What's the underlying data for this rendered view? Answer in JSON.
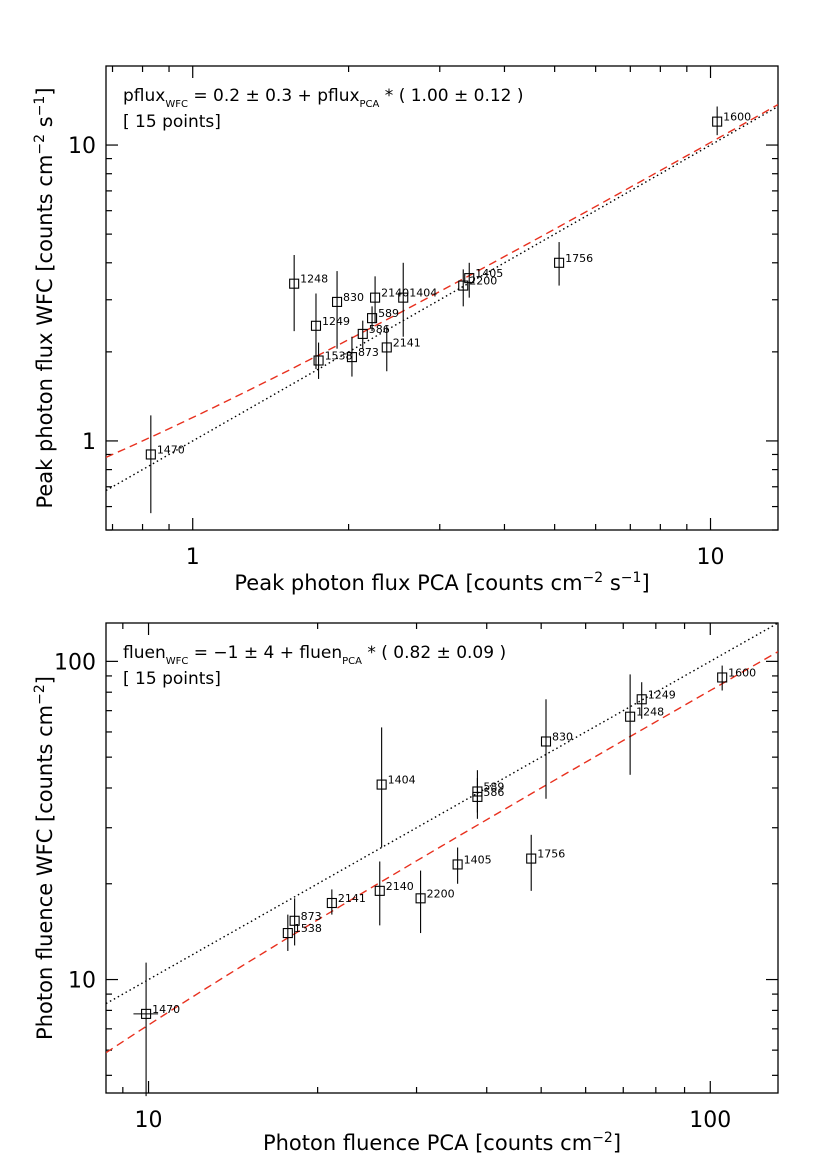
{
  "colors": {
    "fit_dashed": "#e8301e",
    "fit_dotted": "#000000",
    "axes": "#000000"
  },
  "chart_data": [
    {
      "type": "scatter",
      "xscale": "log",
      "yscale": "log",
      "xlim": [
        0.68,
        13.5
      ],
      "ylim": [
        0.5,
        18.5
      ],
      "xlabel": "Peak photon flux PCA [counts cm",
      "xlabel_unit_exp1": "−2",
      "xlabel_unit_mid": " s",
      "xlabel_unit_exp2": "−1",
      "xlabel_close": "]",
      "ylabel": "Peak photon flux WFC [counts cm",
      "ylabel_unit_exp1": "−2",
      "ylabel_unit_mid": " s",
      "ylabel_unit_exp2": "−1",
      "ylabel_close": "]",
      "xticks": [
        1,
        10
      ],
      "xtick_labels": [
        "1",
        "10"
      ],
      "yticks": [
        1,
        10
      ],
      "ytick_labels": [
        "1",
        "10"
      ],
      "annotation": {
        "line1_a": "pflux",
        "line1_sub1": "WFC",
        "line1_b": " = 0.2 ± 0.3 + pflux",
        "line1_sub2": "PCA",
        "line1_c": " * ( 1.00 ± 0.12 )",
        "line2": "[ 15 points]"
      },
      "fit_dashed": {
        "intercept": 0.2,
        "slope": 1.0
      },
      "fit_dotted": "y = x",
      "points": [
        {
          "label": "1470",
          "x": 0.83,
          "y": 0.9,
          "ylo": 0.57,
          "yhi": 1.22
        },
        {
          "label": "1248",
          "x": 1.57,
          "y": 3.4,
          "ylo": 2.35,
          "yhi": 4.25
        },
        {
          "label": "1249",
          "x": 1.73,
          "y": 2.45,
          "ylo": 1.75,
          "yhi": 3.15
        },
        {
          "label": "1538",
          "x": 1.75,
          "y": 1.87,
          "ylo": 1.62,
          "yhi": 2.15
        },
        {
          "label": "830",
          "x": 1.9,
          "y": 2.95,
          "ylo": 2.05,
          "yhi": 3.75
        },
        {
          "label": "873",
          "x": 2.03,
          "y": 1.92,
          "ylo": 1.65,
          "yhi": 2.25
        },
        {
          "label": "586",
          "x": 2.13,
          "y": 2.3,
          "ylo": 2.05,
          "yhi": 2.55
        },
        {
          "label": "589",
          "x": 2.22,
          "y": 2.6,
          "ylo": 2.35,
          "yhi": 2.85
        },
        {
          "label": "2140",
          "x": 2.25,
          "y": 3.05,
          "ylo": 2.5,
          "yhi": 3.6
        },
        {
          "label": "2141",
          "x": 2.37,
          "y": 2.07,
          "ylo": 1.72,
          "yhi": 2.45
        },
        {
          "label": "1404",
          "x": 2.55,
          "y": 3.05,
          "ylo": 2.25,
          "yhi": 4.0
        },
        {
          "label": "2200",
          "x": 3.33,
          "y": 3.35,
          "ylo": 2.85,
          "yhi": 3.8
        },
        {
          "label": "1405",
          "x": 3.42,
          "y": 3.55,
          "ylo": 3.05,
          "yhi": 4.0
        },
        {
          "label": "1756",
          "x": 5.1,
          "y": 4.0,
          "ylo": 3.35,
          "yhi": 4.7
        },
        {
          "label": "1600",
          "x": 10.3,
          "y": 12.0,
          "ylo": 10.8,
          "yhi": 13.5
        }
      ]
    },
    {
      "type": "scatter",
      "xscale": "log",
      "yscale": "log",
      "xlim": [
        8.4,
        132
      ],
      "ylim": [
        4.4,
        132
      ],
      "xlabel": "Photon fluence PCA [counts cm",
      "xlabel_unit_exp1": "−2",
      "xlabel_close": "]",
      "ylabel": "Photon fluence WFC [counts cm",
      "ylabel_unit_exp1": "−2",
      "ylabel_close": "]",
      "xticks": [
        10,
        100
      ],
      "xtick_labels": [
        "10",
        "100"
      ],
      "yticks": [
        10,
        100
      ],
      "ytick_labels": [
        "10",
        "100"
      ],
      "annotation": {
        "line1_a": "fluen",
        "line1_sub1": "WFC",
        "line1_b": " = −1 ± 4 + fluen",
        "line1_sub2": "PCA",
        "line1_c": " * ( 0.82 ± 0.09 )",
        "line2": "[ 15 points]"
      },
      "fit_dashed": {
        "intercept": -1,
        "slope": 0.82
      },
      "fit_dotted": "y = x",
      "points": [
        {
          "label": "1470",
          "x": 9.9,
          "y": 7.8,
          "ylo": 4.3,
          "yhi": 11.3,
          "xlo": 9.4,
          "xhi": 10.4
        },
        {
          "label": "1538",
          "x": 17.7,
          "y": 14.0,
          "ylo": 12.3,
          "yhi": 16.0
        },
        {
          "label": "873",
          "x": 18.2,
          "y": 15.3,
          "ylo": 12.8,
          "yhi": 18.0
        },
        {
          "label": "2141",
          "x": 21.2,
          "y": 17.4,
          "ylo": 16.0,
          "yhi": 19.2
        },
        {
          "label": "2140",
          "x": 25.8,
          "y": 19.0,
          "ylo": 14.8,
          "yhi": 23.5
        },
        {
          "label": "1404",
          "x": 26.0,
          "y": 41.0,
          "ylo": 26.0,
          "yhi": 62.0
        },
        {
          "label": "2200",
          "x": 30.5,
          "y": 18.0,
          "ylo": 14.0,
          "yhi": 22.0
        },
        {
          "label": "1405",
          "x": 35.5,
          "y": 23.0,
          "ylo": 20.0,
          "yhi": 26.0
        },
        {
          "label": "586",
          "x": 38.5,
          "y": 37.5,
          "ylo": 32.0,
          "yhi": 43.0
        },
        {
          "label": "589",
          "x": 38.5,
          "y": 39.0,
          "ylo": 33.5,
          "yhi": 45.5
        },
        {
          "label": "1756",
          "x": 48.0,
          "y": 24.0,
          "ylo": 19.0,
          "yhi": 28.5
        },
        {
          "label": "830",
          "x": 51.0,
          "y": 56.0,
          "ylo": 37.0,
          "yhi": 76.0
        },
        {
          "label": "1248",
          "x": 72.0,
          "y": 67.0,
          "ylo": 44.0,
          "yhi": 91.0
        },
        {
          "label": "1249",
          "x": 75.5,
          "y": 76.0,
          "ylo": 66.0,
          "yhi": 86.0
        },
        {
          "label": "1600",
          "x": 105.0,
          "y": 89.0,
          "ylo": 81.0,
          "yhi": 97.0
        }
      ]
    }
  ]
}
